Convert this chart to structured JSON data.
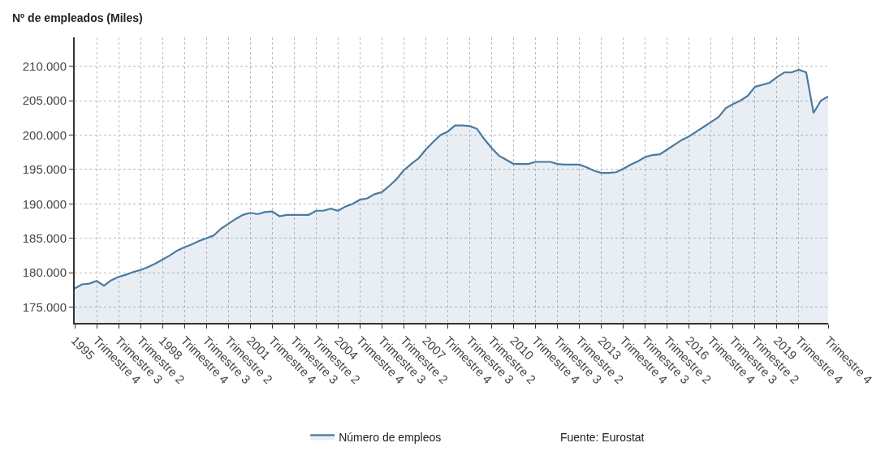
{
  "chart_data": {
    "type": "area",
    "ylabel": "Nº de empleados (Miles)",
    "categories": [
      "1995",
      null,
      null,
      "Trimestre 4",
      null,
      null,
      "Trimestre 3",
      null,
      null,
      "Trimestre 2",
      null,
      null,
      "1998",
      null,
      null,
      "Trimestre 4",
      null,
      null,
      "Trimestre 3",
      null,
      null,
      "Trimestre 2",
      null,
      null,
      "2001",
      null,
      null,
      "Trimestre 4",
      null,
      null,
      "Trimestre 3",
      null,
      null,
      "Trimestre 2",
      null,
      null,
      "2004",
      null,
      null,
      "Trimestre 4",
      null,
      null,
      "Trimestre 3",
      null,
      null,
      "Trimestre 2",
      null,
      null,
      "2007",
      null,
      null,
      "Trimestre 4",
      null,
      null,
      "Trimestre 3",
      null,
      null,
      "Trimestre 2",
      null,
      null,
      "2010",
      null,
      null,
      "Trimestre 4",
      null,
      null,
      "Trimestre 3",
      null,
      null,
      "Trimestre 2",
      null,
      null,
      "2013",
      null,
      null,
      "Trimestre 4",
      null,
      null,
      "Trimestre 3",
      null,
      null,
      "Trimestre 2",
      null,
      null,
      "2016",
      null,
      null,
      "Trimestre 4",
      null,
      null,
      "Trimestre 3",
      null,
      null,
      "Trimestre 2",
      null,
      null,
      "2019",
      null,
      null,
      "Trimestre 4",
      null,
      null,
      null,
      "Trimestre 4"
    ],
    "series": [
      {
        "name": "Número de empleos",
        "color": "#4a7aa0",
        "values": [
          177700,
          178300,
          178400,
          178800,
          178100,
          178900,
          179400,
          179700,
          180100,
          180400,
          180800,
          181300,
          181900,
          182500,
          183200,
          183700,
          184100,
          184600,
          185000,
          185400,
          186400,
          187100,
          187800,
          188400,
          188700,
          188500,
          188800,
          188900,
          188200,
          188400,
          188400,
          188400,
          188400,
          189000,
          189000,
          189300,
          189000,
          189600,
          190000,
          190600,
          190800,
          191400,
          191700,
          192600,
          193600,
          194900,
          195800,
          196600,
          197900,
          199000,
          200000,
          200500,
          201400,
          201400,
          201300,
          200900,
          199400,
          198100,
          197000,
          196400,
          195800,
          195800,
          195800,
          196100,
          196100,
          196100,
          195800,
          195700,
          195700,
          195700,
          195300,
          194800,
          194500,
          194500,
          194600,
          195100,
          195700,
          196200,
          196800,
          197100,
          197200,
          197900,
          198600,
          199300,
          199800,
          200500,
          201200,
          201900,
          202600,
          203900,
          204500,
          205000,
          205700,
          207000,
          207300,
          207600,
          208400,
          209100,
          209100,
          209500,
          209100,
          203200,
          205000,
          205600
        ]
      }
    ],
    "ylim": [
      172700,
      214200
    ],
    "yticks": [
      {
        "value": 175000,
        "label": "175.000"
      },
      {
        "value": 180000,
        "label": "180.000"
      },
      {
        "value": 185000,
        "label": "185.000"
      },
      {
        "value": 190000,
        "label": "190.000"
      },
      {
        "value": 195000,
        "label": "195.000"
      },
      {
        "value": 200000,
        "label": "200.000"
      },
      {
        "value": 205000,
        "label": "205.000"
      },
      {
        "value": 210000,
        "label": "210.000"
      }
    ],
    "grid": true,
    "legend": "bottom",
    "annotations": [
      "Fuente: Eurostat"
    ]
  }
}
